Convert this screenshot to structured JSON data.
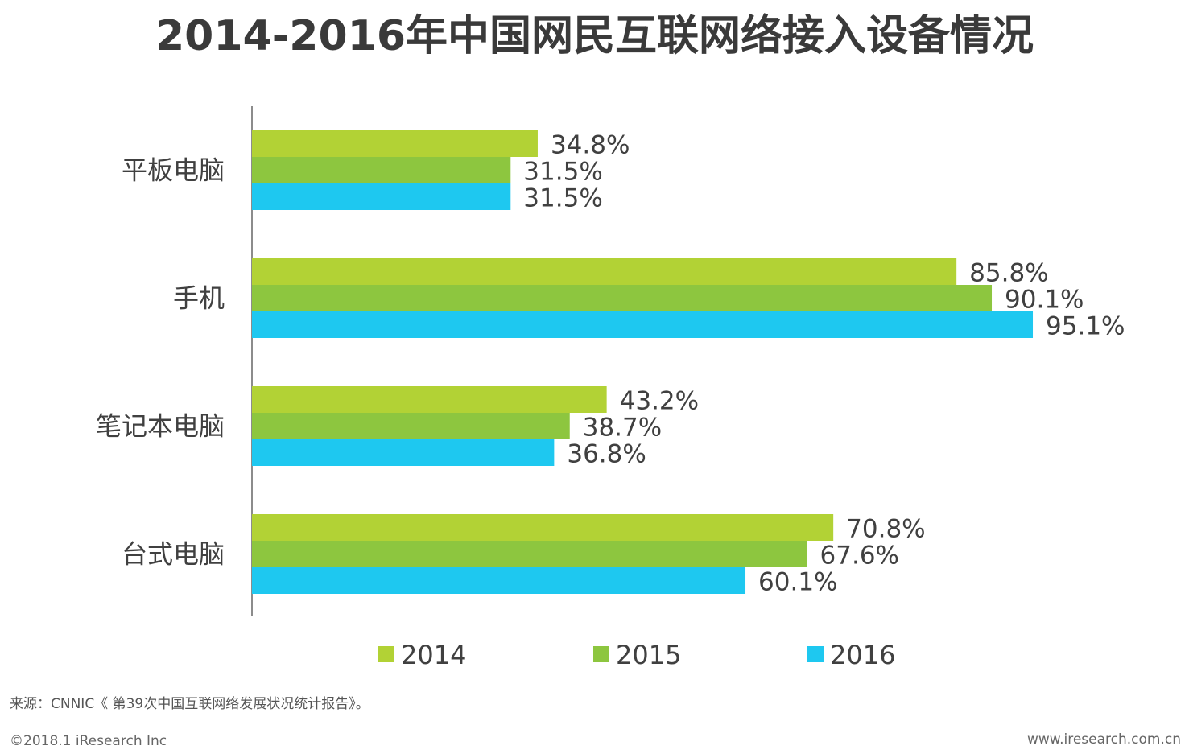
{
  "title": "2014-2016年中国网民互联网络接入设备情况",
  "source": "来源：CNNIC《 第39次中国互联网络发展状况统计报告》。",
  "copyright": "©2018.1 iResearch Inc",
  "website": "www.iresearch.com.cn",
  "colors": {
    "2014": "#B2D235",
    "2015": "#8DC63F",
    "2016": "#1EC8F0",
    "axis": "#404040"
  },
  "chart_data": {
    "type": "bar",
    "orientation": "horizontal",
    "title": "2014-2016年中国网民互联网络接入设备情况",
    "categories": [
      "平板电脑",
      "手机",
      "笔记本电脑",
      "台式电脑"
    ],
    "series": [
      {
        "name": "2014",
        "values": [
          34.8,
          85.8,
          43.2,
          70.8
        ],
        "labels": [
          "34.8%",
          "85.8%",
          "43.2%",
          "70.8%"
        ]
      },
      {
        "name": "2015",
        "values": [
          31.5,
          90.1,
          38.7,
          67.6
        ],
        "labels": [
          "31.5%",
          "90.1%",
          "38.7%",
          "67.6%"
        ]
      },
      {
        "name": "2016",
        "values": [
          31.5,
          95.1,
          36.8,
          60.1
        ],
        "labels": [
          "31.5%",
          "95.1%",
          "36.8%",
          "60.1%"
        ]
      }
    ],
    "value_unit": "%",
    "xlim": [
      0,
      100
    ],
    "grid": false,
    "legend": "bottom"
  }
}
